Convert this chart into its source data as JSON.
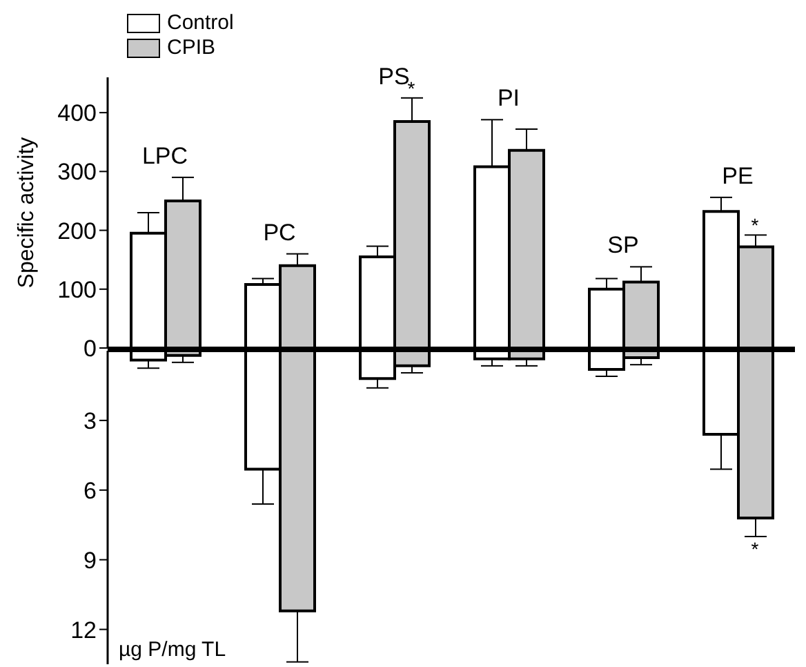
{
  "chart_data": [
    {
      "type": "bar",
      "ylabel": "Specific activity",
      "categories": [
        "LPC",
        "PC",
        "PS",
        "PI",
        "SP",
        "PE"
      ],
      "series": [
        {
          "name": "Control",
          "color": "#ffffff",
          "values": [
            195,
            108,
            155,
            308,
            100,
            232
          ],
          "errors": [
            [
              195,
              230
            ],
            [
              108,
              118
            ],
            [
              155,
              173
            ],
            [
              308,
              388
            ],
            [
              100,
              118
            ],
            [
              232,
              256
            ]
          ]
        },
        {
          "name": "CPIB",
          "color": "#c8c8c8",
          "values": [
            250,
            140,
            385,
            336,
            112,
            172
          ],
          "errors": [
            [
              250,
              290
            ],
            [
              140,
              160
            ],
            [
              385,
              425
            ],
            [
              336,
              372
            ],
            [
              112,
              138
            ],
            [
              172,
              192
            ]
          ]
        }
      ],
      "ylim": [
        0,
        460
      ],
      "yticks": [
        0,
        100,
        200,
        300,
        400
      ],
      "legend": "top left",
      "annotations": [
        {
          "text": "*",
          "x": "PS",
          "y": 425
        },
        {
          "text": "*",
          "x": "PE",
          "y": 192
        }
      ]
    },
    {
      "type": "bar",
      "ylabel": "µg P/mg TL",
      "categories": [
        null,
        null,
        null,
        null,
        null,
        null
      ],
      "tick_labels": "y",
      "series": [
        {
          "color": "#ffffff",
          "values": [
            0.4,
            5.1,
            1.2,
            0.35,
            0.8,
            3.6
          ],
          "errors": [
            [
              0.4,
              0.75
            ],
            [
              5.1,
              6.6
            ],
            [
              1.2,
              1.6
            ],
            [
              0.35,
              0.65
            ],
            [
              0.8,
              1.1
            ],
            [
              3.6,
              5.1
            ]
          ]
        },
        {
          "color": "#c8c8c8",
          "values": [
            0.2,
            11.2,
            0.65,
            0.35,
            0.3,
            7.2
          ],
          "errors": [
            [
              0.2,
              0.5
            ],
            [
              11.2,
              13.4
            ],
            [
              0.65,
              0.95
            ],
            [
              0.35,
              0.65
            ],
            [
              0.3,
              0.6
            ],
            [
              7.2,
              8.0
            ]
          ]
        }
      ],
      "ylim": [
        13.5,
        0
      ],
      "yticks": [
        3,
        6,
        9,
        12
      ],
      "annotations": [
        {
          "text": "*",
          "y": 8.0
        }
      ]
    }
  ]
}
